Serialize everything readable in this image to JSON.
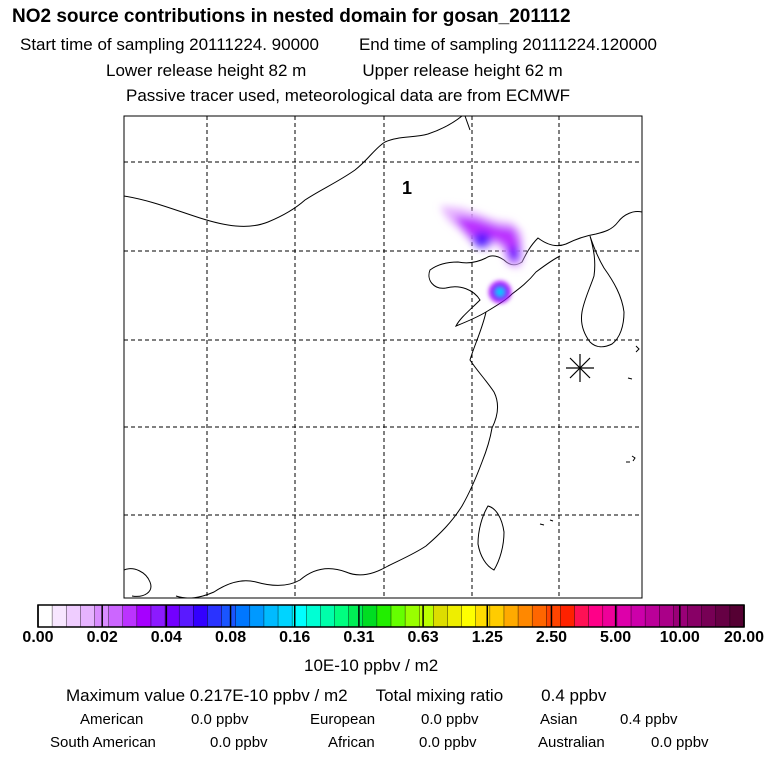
{
  "header": {
    "title": "NO2 source contributions in nested domain for gosan_201112",
    "start": "Start time of sampling 20111224. 90000",
    "end": "End time of sampling 20111224.120000",
    "lower": "Lower release height   82 m",
    "upper": "Upper release height   62 m",
    "tracer": "Passive tracer used, meteorological data are from ECMWF"
  },
  "map": {
    "label": "1",
    "receptor": "gosan",
    "receptor_icon": "asterisk-marker-icon"
  },
  "colorbar": {
    "ticks": [
      "0.00",
      "0.02",
      "0.04",
      "0.08",
      "0.16",
      "0.31",
      "0.63",
      "1.25",
      "2.50",
      "5.00",
      "10.00",
      "20.00"
    ],
    "units": "10E-10 ppbv / m2",
    "colors": [
      "#ffffff",
      "#f7e6ff",
      "#efcdff",
      "#e6b3ff",
      "#d98cff",
      "#cc66ff",
      "#bb33ff",
      "#a600ff",
      "#8c1aff",
      "#7300ff",
      "#5a1aff",
      "#3300ff",
      "#2a33ff",
      "#1a55ff",
      "#0077ff",
      "#0099ff",
      "#00bbff",
      "#00d4ff",
      "#00ffff",
      "#00ffd4",
      "#00ffaa",
      "#00ff80",
      "#00ee55",
      "#00dd22",
      "#22ee00",
      "#66ff00",
      "#99ff00",
      "#bbff00",
      "#dddd00",
      "#eeee00",
      "#ffff00",
      "#ffdd00",
      "#ffcc00",
      "#ffaa00",
      "#ff8800",
      "#ff6600",
      "#ff4400",
      "#ff2200",
      "#ff1155",
      "#ff0088",
      "#ee0099",
      "#dd00aa",
      "#cc00aa",
      "#bb0099",
      "#aa0088",
      "#990077",
      "#880066",
      "#770055",
      "#660044",
      "#550033"
    ]
  },
  "summary": {
    "max_label": "Maximum value  0.217E-10 ppbv / m2",
    "total_label": "Total mixing ratio",
    "total_value": "0.4 ppbv"
  },
  "regions": [
    {
      "name": "American",
      "value": "0.0 ppbv"
    },
    {
      "name": "European",
      "value": "0.0 ppbv"
    },
    {
      "name": "Asian",
      "value": "0.4 ppbv"
    },
    {
      "name": "South American",
      "value": "0.0 ppbv"
    },
    {
      "name": "African",
      "value": "0.0 ppbv"
    },
    {
      "name": "Australian",
      "value": "0.0 ppbv"
    }
  ]
}
